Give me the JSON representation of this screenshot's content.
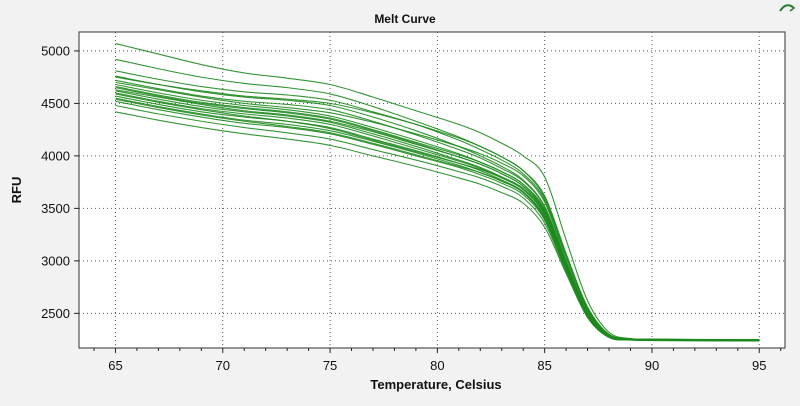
{
  "chart_data": {
    "type": "line",
    "title": "Melt Curve",
    "xlabel": "Temperature, Celsius",
    "ylabel": "RFU",
    "xlim": [
      63.3,
      96.2
    ],
    "ylim": [
      2170,
      5180
    ],
    "xticks": [
      65,
      70,
      75,
      80,
      85,
      90,
      95
    ],
    "yticks": [
      2500,
      3000,
      3500,
      4000,
      4500,
      5000
    ],
    "grid": true,
    "legend": "none",
    "line_color": "#1e8a1e",
    "x": [
      65,
      67,
      69,
      71,
      73,
      75,
      77,
      79,
      81,
      82,
      83,
      84,
      85,
      86,
      87,
      88,
      89,
      90,
      92,
      95
    ],
    "series": [
      {
        "values": [
          5070,
          4970,
          4870,
          4790,
          4740,
          4680,
          4560,
          4430,
          4300,
          4220,
          4120,
          4000,
          3800,
          3200,
          2620,
          2320,
          2260,
          2255,
          2252,
          2250
        ]
      },
      {
        "values": [
          4920,
          4830,
          4750,
          4690,
          4650,
          4590,
          4470,
          4330,
          4180,
          4090,
          3990,
          3860,
          3620,
          3070,
          2560,
          2300,
          2258,
          2253,
          2250,
          2248
        ]
      },
      {
        "values": [
          4810,
          4730,
          4660,
          4610,
          4580,
          4530,
          4420,
          4300,
          4150,
          4060,
          3960,
          3830,
          3580,
          3040,
          2550,
          2300,
          2257,
          2252,
          2250,
          2247
        ]
      },
      {
        "values": [
          4760,
          4680,
          4610,
          4560,
          4530,
          4480,
          4370,
          4240,
          4090,
          4000,
          3900,
          3770,
          3520,
          2990,
          2520,
          2290,
          2256,
          2251,
          2249,
          2246
        ]
      },
      {
        "values": [
          4720,
          4640,
          4570,
          4520,
          4490,
          4440,
          4330,
          4200,
          4060,
          3980,
          3880,
          3760,
          3510,
          2980,
          2510,
          2288,
          2255,
          2250,
          2248,
          2245
        ]
      },
      {
        "values": [
          4680,
          4600,
          4530,
          4480,
          4440,
          4380,
          4270,
          4150,
          4020,
          3940,
          3850,
          3730,
          3490,
          2970,
          2500,
          2285,
          2254,
          2249,
          2247,
          2244
        ]
      },
      {
        "values": [
          4650,
          4570,
          4500,
          4450,
          4410,
          4350,
          4240,
          4120,
          3990,
          3920,
          3830,
          3710,
          3470,
          2960,
          2495,
          2283,
          2253,
          2248,
          2246,
          2243
        ]
      },
      {
        "values": [
          4620,
          4540,
          4470,
          4420,
          4380,
          4320,
          4210,
          4090,
          3960,
          3890,
          3800,
          3690,
          3450,
          2950,
          2490,
          2282,
          2252,
          2247,
          2245,
          2242
        ]
      },
      {
        "values": [
          4600,
          4520,
          4450,
          4400,
          4360,
          4300,
          4190,
          4070,
          3950,
          3880,
          3790,
          3680,
          3440,
          2940,
          2485,
          2280,
          2251,
          2246,
          2244,
          2241
        ]
      },
      {
        "values": [
          4570,
          4490,
          4420,
          4370,
          4330,
          4270,
          4160,
          4050,
          3930,
          3860,
          3770,
          3660,
          3420,
          2930,
          2480,
          2278,
          2250,
          2245,
          2243,
          2240
        ]
      },
      {
        "values": [
          4550,
          4470,
          4400,
          4340,
          4300,
          4240,
          4140,
          4030,
          3910,
          3840,
          3760,
          3650,
          3410,
          2920,
          2475,
          2276,
          2249,
          2244,
          2242,
          2240
        ]
      },
      {
        "values": [
          4520,
          4440,
          4370,
          4310,
          4270,
          4210,
          4110,
          4000,
          3890,
          3820,
          3740,
          3630,
          3390,
          2910,
          2470,
          2274,
          2248,
          2243,
          2241,
          2239
        ]
      },
      {
        "values": [
          4480,
          4400,
          4330,
          4270,
          4220,
          4160,
          4060,
          3960,
          3850,
          3790,
          3710,
          3600,
          3360,
          2900,
          2465,
          2272,
          2247,
          2242,
          2240,
          2238
        ]
      },
      {
        "values": [
          4420,
          4340,
          4270,
          4210,
          4160,
          4100,
          4000,
          3900,
          3790,
          3730,
          3650,
          3550,
          3320,
          2880,
          2460,
          2270,
          2246,
          2241,
          2239,
          2237
        ]
      },
      {
        "values": [
          4700,
          4630,
          4560,
          4500,
          4460,
          4410,
          4320,
          4210,
          4090,
          4020,
          3930,
          3810,
          3560,
          3010,
          2530,
          2292,
          2256,
          2250,
          2248,
          2245
        ]
      },
      {
        "values": [
          4630,
          4560,
          4490,
          4430,
          4390,
          4330,
          4230,
          4110,
          3990,
          3920,
          3830,
          3710,
          3460,
          2950,
          2490,
          2281,
          2252,
          2247,
          2245,
          2242
        ]
      },
      {
        "values": [
          4590,
          4510,
          4440,
          4380,
          4330,
          4260,
          4150,
          4040,
          3930,
          3870,
          3790,
          3680,
          3440,
          2930,
          2480,
          2279,
          2250,
          2245,
          2243,
          2241
        ]
      },
      {
        "values": [
          4540,
          4460,
          4390,
          4330,
          4280,
          4220,
          4120,
          4010,
          3900,
          3840,
          3760,
          3650,
          3400,
          2920,
          2470,
          2275,
          2249,
          2244,
          2242,
          2239
        ]
      },
      {
        "values": [
          4750,
          4680,
          4620,
          4570,
          4540,
          4500,
          4410,
          4300,
          4170,
          4090,
          3990,
          3860,
          3600,
          3050,
          2540,
          2295,
          2257,
          2252,
          2249,
          2246
        ]
      },
      {
        "values": [
          4660,
          4580,
          4510,
          4460,
          4420,
          4360,
          4250,
          4130,
          4010,
          3940,
          3850,
          3730,
          3480,
          2960,
          2495,
          2284,
          2253,
          2248,
          2246,
          2243
        ]
      }
    ]
  }
}
